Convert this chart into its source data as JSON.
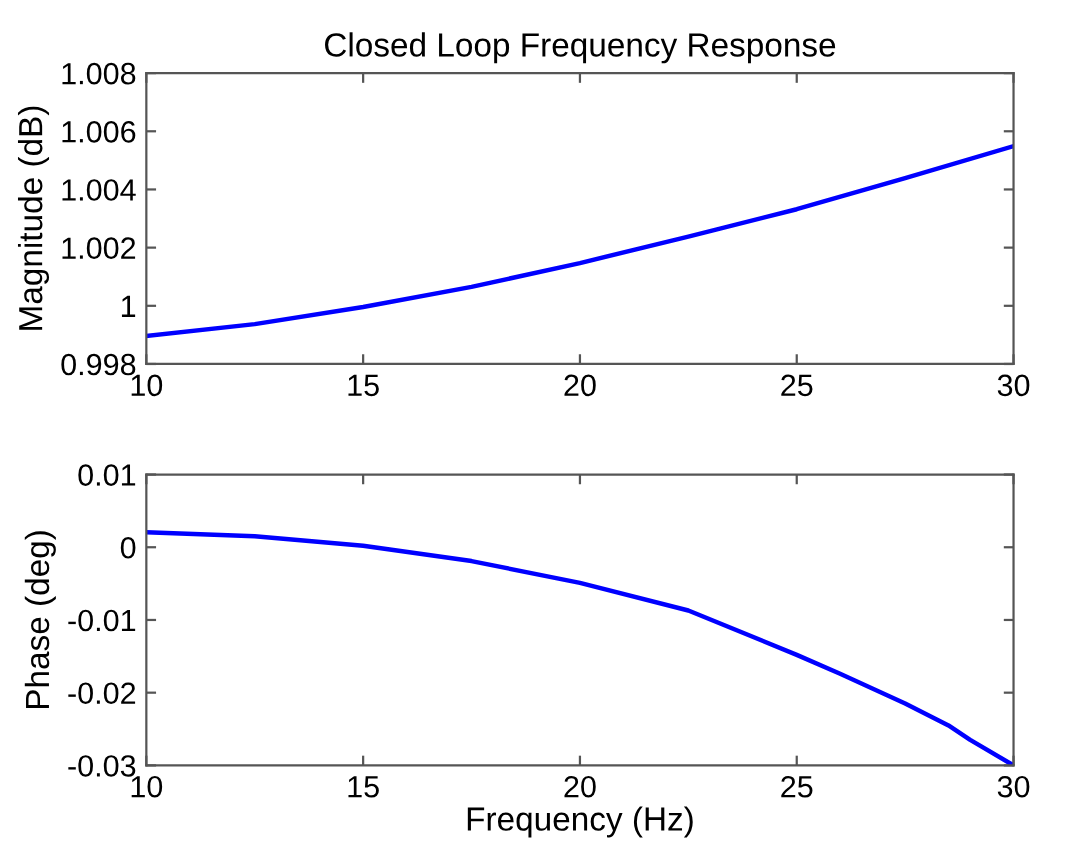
{
  "chart_data": [
    {
      "type": "line",
      "title": "Closed Loop Frequency Response",
      "ylabel": "Magnitude (dB)",
      "grid": false,
      "marker": "none",
      "line_style": "solid",
      "x": [
        10,
        12.5,
        15,
        17.5,
        20,
        22.5,
        25,
        27.5,
        30
      ],
      "series": [
        {
          "color": "#0000ff",
          "values": [
            0.99896,
            0.99937,
            0.99996,
            1.00065,
            1.00147,
            1.00238,
            1.00332,
            1.00439,
            1.00549
          ]
        }
      ],
      "xlim": [
        10,
        30
      ],
      "xticks": [
        10,
        15,
        20,
        25,
        30
      ],
      "ylim": [
        0.998,
        1.008
      ],
      "yticks": [
        0.998,
        1,
        1.002,
        1.004,
        1.006,
        1.008
      ]
    },
    {
      "type": "line",
      "xlabel": "Frequency (Hz)",
      "ylabel": "Phase (deg)",
      "grid": false,
      "marker": "none",
      "line_style": "solid",
      "x": [
        10,
        12.5,
        15,
        17.5,
        20,
        22.5,
        25,
        26,
        27.5,
        28.5,
        29,
        30
      ],
      "series": [
        {
          "color": "#0000ff",
          "values": [
            0.00205,
            0.0015,
            0.0002,
            -0.0019,
            -0.0049,
            -0.0087,
            -0.0148,
            -0.0174,
            -0.0215,
            -0.0245,
            -0.0265,
            -0.03
          ]
        }
      ],
      "xlim": [
        10,
        30
      ],
      "xticks": [
        10,
        15,
        20,
        25,
        30
      ],
      "ylim": [
        -0.03,
        0.01
      ],
      "yticks": [
        -0.03,
        -0.02,
        -0.01,
        0,
        0.01
      ]
    }
  ]
}
